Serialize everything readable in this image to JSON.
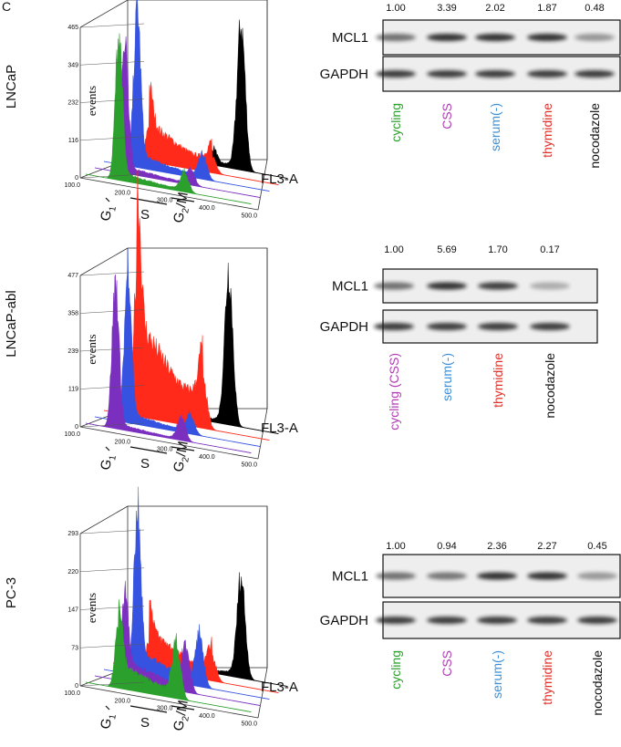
{
  "panel_label": "C",
  "rows": [
    {
      "cell_line": "LNCaP",
      "histogram": {
        "y_label": "events",
        "yticks": [
          "465",
          "349",
          "232",
          "116",
          "0"
        ],
        "xticks": [
          "100.0",
          "200.0",
          "300.0",
          "400.0",
          "500.0"
        ],
        "x_label": "FL3-A",
        "phases": [
          {
            "text": "G",
            "sub": "1"
          },
          {
            "text": "S"
          },
          {
            "text": "G",
            "sub": "2",
            "rest": "/M"
          }
        ]
      },
      "blot": {
        "quant": [
          "1.00",
          "3.39",
          "2.02",
          "1.87",
          "0.48"
        ],
        "bands": [
          "MCL1",
          "GAPDH"
        ],
        "lanes": [
          {
            "label": "cycling",
            "color": "#2ca02c"
          },
          {
            "label": "CSS",
            "color": "#b23cb5"
          },
          {
            "label": "serum(-)",
            "color": "#3a8fd8"
          },
          {
            "label": "thymidine",
            "color": "#e0302a"
          },
          {
            "label": "nocodazole",
            "color": "#111111"
          }
        ]
      }
    },
    {
      "cell_line": "LNCaP-abl",
      "histogram": {
        "y_label": "events",
        "yticks": [
          "477",
          "358",
          "239",
          "119",
          "0"
        ],
        "xticks": [
          "100.0",
          "200.0",
          "300.0",
          "400.0",
          "500.0"
        ],
        "x_label": "FL3-A",
        "phases": [
          {
            "text": "G",
            "sub": "1"
          },
          {
            "text": "S"
          },
          {
            "text": "G",
            "sub": "2",
            "rest": "/M"
          }
        ]
      },
      "blot": {
        "quant": [
          "1.00",
          "5.69",
          "1.70",
          "0.17"
        ],
        "bands": [
          "MCL1",
          "GAPDH"
        ],
        "lanes": [
          {
            "label": "cycling (CSS)",
            "color": "#b23cb5"
          },
          {
            "label": "serum(-)",
            "color": "#3a8fd8"
          },
          {
            "label": "thymidine",
            "color": "#e0302a"
          },
          {
            "label": "nocodazole",
            "color": "#111111"
          }
        ]
      }
    },
    {
      "cell_line": "PC-3",
      "histogram": {
        "y_label": "events",
        "yticks": [
          "293",
          "220",
          "147",
          "73",
          "0"
        ],
        "xticks": [
          "100.0",
          "200.0",
          "300.0",
          "400.0",
          "500.0"
        ],
        "x_label": "FL3-A",
        "phases": [
          {
            "text": "G",
            "sub": "1"
          },
          {
            "text": "S"
          },
          {
            "text": "G",
            "sub": "2",
            "rest": "/M"
          }
        ]
      },
      "blot": {
        "quant": [
          "1.00",
          "0.94",
          "2.36",
          "2.27",
          "0.45"
        ],
        "bands": [
          "MCL1",
          "GAPDH"
        ],
        "lanes": [
          {
            "label": "cycling",
            "color": "#2ca02c"
          },
          {
            "label": "CSS",
            "color": "#b23cb5"
          },
          {
            "label": "serum(-)",
            "color": "#3a8fd8"
          },
          {
            "label": "thymidine",
            "color": "#e0302a"
          },
          {
            "label": "nocodazole",
            "color": "#111111"
          }
        ]
      }
    }
  ]
}
